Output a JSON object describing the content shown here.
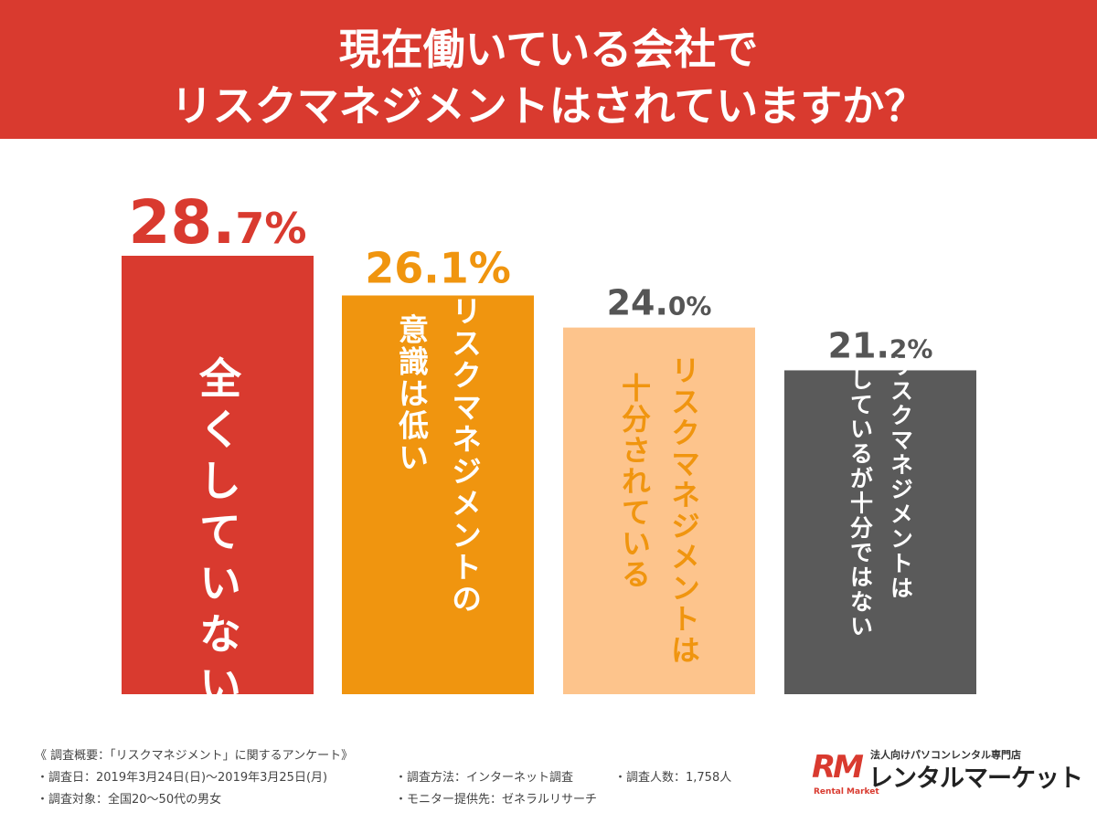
{
  "header": {
    "title_line1": "現在働いている会社で",
    "title_line2": "リスクマネジメントはされていますか？"
  },
  "chart_data": {
    "type": "bar",
    "categories": [
      "全くしていない",
      "リスクマネジメントの意識は低い",
      "リスクマネジメントは十分されている",
      "リスクマネジメントはしているが十分ではない"
    ],
    "category_lines": [
      [
        "全くしていない"
      ],
      [
        "リスクマネジメントの",
        "意識は低い"
      ],
      [
        "リスクマネジメントは",
        "十分されている"
      ],
      [
        "リスクマネジメントは",
        "しているが十分ではない"
      ]
    ],
    "values": [
      28.7,
      26.1,
      24.0,
      21.2
    ],
    "value_labels": [
      {
        "int": "28.",
        "dec": "7%"
      },
      {
        "int": "26.",
        "dec": "1%"
      },
      {
        "int": "24.",
        "dec": "0%"
      },
      {
        "int": "21.",
        "dec": "2%"
      }
    ],
    "ylim": [
      0,
      28.7
    ],
    "colors": [
      "#d93a2f",
      "#f0950f",
      "#fdc48c",
      "#5a5a5a"
    ],
    "label_colors": [
      "#d93a2f",
      "#f0950f",
      "#555555",
      "#555555"
    ],
    "bar_text_colors": [
      "#ffffff",
      "#ffffff",
      "#f0950f",
      "#ffffff"
    ]
  },
  "footer": {
    "survey_title": "《 調査概要：「リスクマネジメント」に関するアンケート》",
    "survey_date": "・調査日：2019年3月24日(日)～2019年3月25日(月)",
    "survey_method": "・調査方法：インターネット調査",
    "survey_count": "・調査人数：1,758人",
    "survey_target": "・調査対象：全国20～50代の男女",
    "survey_provider": "・モニター提供先：ゼネラルリサーチ"
  },
  "logo": {
    "small_text": "法人向けパソコンレンタル専門店",
    "main_text": "レンタルマーケット",
    "mark_text": "RM",
    "mark_sub": "Rental Market"
  }
}
